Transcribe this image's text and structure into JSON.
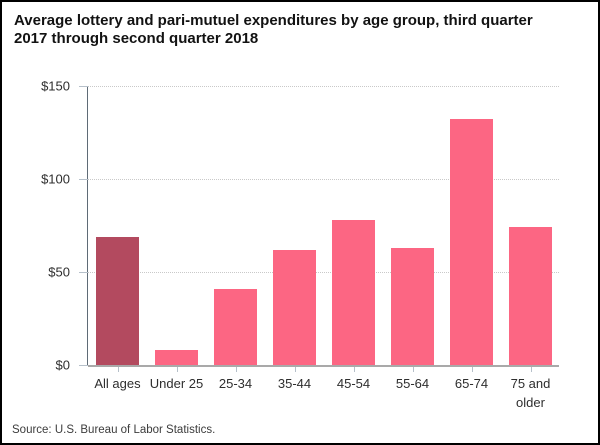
{
  "title": "Average lottery and pari-mutuel expenditures by age group, third quarter 2017 through second quarter 2018",
  "source": "Source: U.S. Bureau of Labor Statistics.",
  "chart_data": {
    "type": "bar",
    "title": "Average lottery and pari-mutuel expenditures by age group, third quarter 2017 through second quarter 2018",
    "categories": [
      "All ages",
      "Under 25",
      "25-34",
      "35-44",
      "45-54",
      "55-64",
      "65-74",
      "75 and older"
    ],
    "values": [
      69,
      8,
      41,
      62,
      78,
      63,
      132,
      74
    ],
    "unit": "$",
    "xlabel": "",
    "ylabel": "",
    "ylim": [
      0,
      150
    ],
    "yticks": [
      {
        "value": 0,
        "label": "$0"
      },
      {
        "value": 50,
        "label": "$50"
      },
      {
        "value": 100,
        "label": "$100"
      },
      {
        "value": 150,
        "label": "$150"
      }
    ],
    "grid": "horizontal-dotted",
    "legend": false,
    "highlighted_category": "All ages",
    "bar_colors": {
      "default": "#fc6683",
      "All ages": "#b34a5f"
    }
  },
  "colors": {
    "background": "#ffffff",
    "frame_border": "#000000",
    "bar_pink": "#fc6683",
    "bar_dark_rose": "#b34a5f",
    "gridline": "#c9c9c9",
    "y_axis_line": "#5f6b76",
    "x_axis_line": "#a9a9a9",
    "tick": "#b6c0ca",
    "label_text": "#2e2e2e"
  }
}
